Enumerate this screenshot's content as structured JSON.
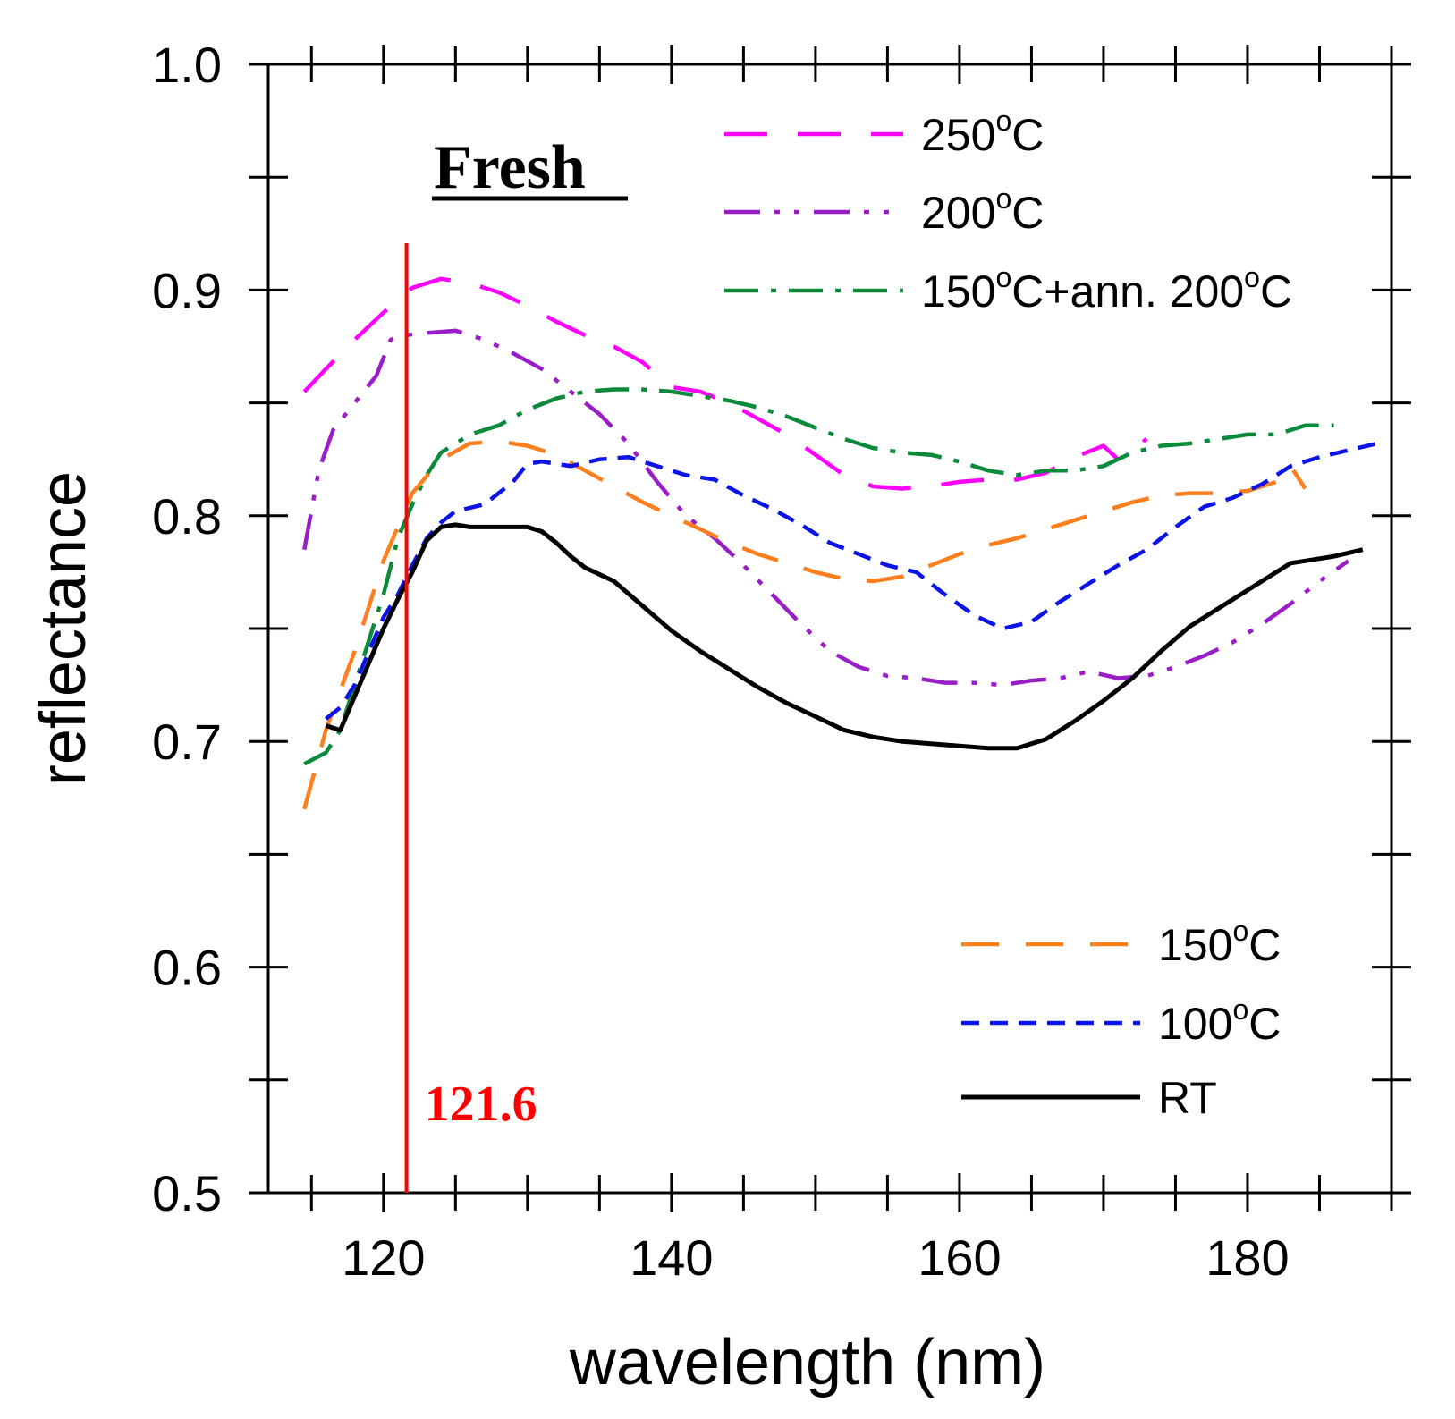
{
  "chart_data": {
    "type": "line",
    "title": "Fresh",
    "xlabel": "wavelength (nm)",
    "ylabel": "reflectance",
    "xlim": [
      112,
      190
    ],
    "ylim": [
      0.5,
      1.0
    ],
    "x_ticks": [
      120,
      140,
      160,
      180
    ],
    "x_tick_labels": [
      "120",
      "140",
      "160",
      "180"
    ],
    "y_ticks": [
      0.5,
      0.6,
      0.7,
      0.8,
      0.9,
      1.0
    ],
    "y_tick_labels": [
      "0.5",
      "0.6",
      "0.7",
      "0.8",
      "0.9",
      "1.0"
    ],
    "grid": false,
    "reference_line": {
      "x": 121.6,
      "label": "121.6",
      "color": "#ff0000"
    },
    "legend": {
      "top_right": [
        "250C",
        "200C",
        "150C+ann"
      ],
      "bottom_right": [
        "150C",
        "100C",
        "RT"
      ]
    },
    "series": [
      {
        "id": "250C",
        "name_main": "250",
        "name_sup": "o",
        "name_tail": "C",
        "color": "#ff00ff",
        "dash": "48 34",
        "x": [
          114.5,
          116,
          118,
          120,
          122,
          124,
          126,
          128,
          130,
          132,
          134,
          136,
          138,
          140,
          142,
          144,
          146,
          148,
          150,
          152,
          154,
          156,
          158,
          160,
          162,
          164,
          166,
          168,
          170,
          171,
          173
        ],
        "y": [
          0.855,
          0.865,
          0.878,
          0.89,
          0.901,
          0.905,
          0.903,
          0.899,
          0.893,
          0.886,
          0.88,
          0.875,
          0.868,
          0.857,
          0.855,
          0.85,
          0.843,
          0.836,
          0.827,
          0.818,
          0.813,
          0.812,
          0.813,
          0.815,
          0.816,
          0.816,
          0.819,
          0.826,
          0.831,
          0.825,
          0.834
        ]
      },
      {
        "id": "200C",
        "name_main": "200",
        "name_sup": "o",
        "name_tail": "C",
        "color": "#9a1ec8",
        "dash": "40 16 6 16 6 16",
        "x": [
          114.5,
          115.5,
          116.5,
          118,
          119.5,
          120.5,
          121.5,
          123,
          125,
          127,
          129,
          131,
          133,
          135,
          137,
          139,
          141,
          143,
          145,
          147,
          149,
          151,
          153,
          155,
          157,
          159,
          161,
          163,
          165,
          167,
          169,
          171,
          173,
          175,
          177,
          179,
          181,
          183,
          185,
          187
        ],
        "y": [
          0.785,
          0.82,
          0.838,
          0.85,
          0.862,
          0.878,
          0.88,
          0.881,
          0.882,
          0.878,
          0.872,
          0.865,
          0.855,
          0.845,
          0.832,
          0.815,
          0.8,
          0.79,
          0.778,
          0.765,
          0.752,
          0.74,
          0.733,
          0.729,
          0.728,
          0.726,
          0.726,
          0.725,
          0.727,
          0.728,
          0.731,
          0.728,
          0.729,
          0.733,
          0.738,
          0.744,
          0.752,
          0.761,
          0.771,
          0.78
        ]
      },
      {
        "id": "150C+ann",
        "name_main": "150",
        "name_sup": "o",
        "name_tail": "C+ann. 200",
        "name_sup2": "o",
        "name_tail2": "C",
        "color": "#0a8a3a",
        "dash": "38 14 6 14",
        "x": [
          114.5,
          116,
          117,
          118,
          119,
          120,
          121,
          122,
          123,
          124,
          126,
          128,
          130,
          132,
          134,
          136,
          138,
          140,
          142,
          144,
          146,
          148,
          150,
          152,
          154,
          156,
          158,
          160,
          162,
          164,
          166,
          168,
          170,
          172,
          174,
          176,
          178,
          180,
          182,
          184,
          186
        ],
        "y": [
          0.69,
          0.695,
          0.705,
          0.725,
          0.745,
          0.765,
          0.79,
          0.805,
          0.818,
          0.828,
          0.836,
          0.84,
          0.847,
          0.852,
          0.855,
          0.856,
          0.856,
          0.855,
          0.853,
          0.851,
          0.848,
          0.844,
          0.839,
          0.834,
          0.83,
          0.828,
          0.827,
          0.824,
          0.82,
          0.818,
          0.82,
          0.82,
          0.822,
          0.828,
          0.831,
          0.832,
          0.834,
          0.836,
          0.836,
          0.84,
          0.84
        ]
      },
      {
        "id": "150C",
        "name_main": "150",
        "name_sup": "o",
        "name_tail": "C",
        "color": "#ff7f1e",
        "dash": "42 30",
        "x": [
          114.5,
          116,
          118,
          120,
          122,
          124,
          126,
          128,
          130,
          132,
          134,
          136,
          138,
          140,
          142,
          144,
          146,
          148,
          150,
          152,
          154,
          156,
          158,
          160,
          162,
          164,
          166,
          168,
          170,
          172,
          174,
          176,
          178,
          180,
          182,
          183,
          184
        ],
        "y": [
          0.67,
          0.705,
          0.74,
          0.78,
          0.81,
          0.825,
          0.832,
          0.833,
          0.831,
          0.827,
          0.82,
          0.813,
          0.806,
          0.8,
          0.794,
          0.788,
          0.783,
          0.779,
          0.775,
          0.772,
          0.771,
          0.773,
          0.778,
          0.783,
          0.787,
          0.79,
          0.794,
          0.798,
          0.802,
          0.806,
          0.809,
          0.81,
          0.81,
          0.811,
          0.815,
          0.822,
          0.812
        ]
      },
      {
        "id": "100C",
        "name_main": "100",
        "name_sup": "o",
        "name_tail": "C",
        "color": "#0a14e6",
        "dash": "20 12",
        "x": [
          116,
          117,
          118,
          119,
          120,
          121,
          122,
          123,
          124,
          125,
          127,
          129,
          130,
          131,
          133,
          135,
          137,
          139,
          141,
          143,
          145,
          147,
          149,
          151,
          153,
          155,
          157,
          159,
          161,
          163,
          165,
          167,
          169,
          171,
          173,
          175,
          177,
          179,
          181,
          183,
          185,
          187,
          189
        ],
        "y": [
          0.71,
          0.715,
          0.725,
          0.74,
          0.755,
          0.765,
          0.778,
          0.79,
          0.797,
          0.802,
          0.805,
          0.815,
          0.823,
          0.824,
          0.822,
          0.825,
          0.826,
          0.822,
          0.818,
          0.816,
          0.809,
          0.803,
          0.796,
          0.788,
          0.783,
          0.778,
          0.775,
          0.765,
          0.756,
          0.75,
          0.753,
          0.762,
          0.77,
          0.778,
          0.785,
          0.795,
          0.804,
          0.808,
          0.814,
          0.822,
          0.826,
          0.829,
          0.832
        ]
      },
      {
        "id": "RT",
        "name_main": "RT",
        "name_sup": "",
        "name_tail": "",
        "color": "#000000",
        "dash": "",
        "x": [
          116,
          117,
          118,
          119,
          120,
          121,
          122,
          123,
          124,
          125,
          126,
          128,
          130,
          131,
          132,
          133,
          134,
          136,
          138,
          140,
          142,
          144,
          146,
          148,
          150,
          152,
          154,
          156,
          158,
          160,
          162,
          164,
          166,
          168,
          170,
          172,
          174,
          176,
          178,
          180,
          182,
          183,
          184,
          186,
          188
        ],
        "y": [
          0.707,
          0.705,
          0.72,
          0.735,
          0.75,
          0.763,
          0.775,
          0.789,
          0.795,
          0.796,
          0.795,
          0.795,
          0.795,
          0.793,
          0.788,
          0.782,
          0.777,
          0.771,
          0.76,
          0.749,
          0.74,
          0.732,
          0.724,
          0.717,
          0.711,
          0.705,
          0.702,
          0.7,
          0.699,
          0.698,
          0.697,
          0.697,
          0.701,
          0.709,
          0.718,
          0.728,
          0.74,
          0.751,
          0.759,
          0.767,
          0.775,
          0.779,
          0.78,
          0.782,
          0.785
        ]
      }
    ]
  }
}
